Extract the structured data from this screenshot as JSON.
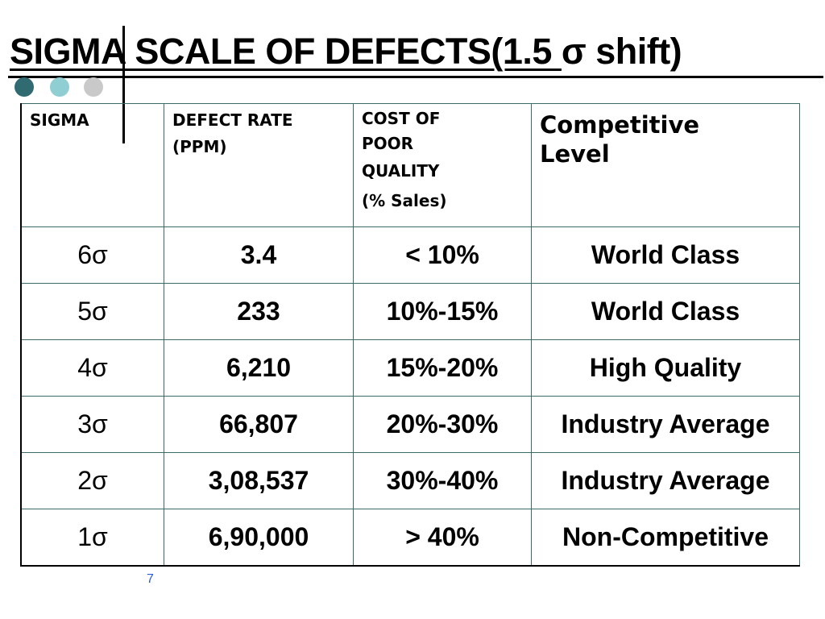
{
  "title": {
    "main": "SIGMA SCALE OF DEFECTS(1.5 ",
    "sigma_shift": "σ shift)"
  },
  "table": {
    "headers": {
      "sigma": "SIGMA",
      "defect_rate": "DEFECT RATE",
      "defect_rate_unit": "(PPM)",
      "cost_line1": "COST OF",
      "cost_line2": "POOR",
      "cost_line3": "QUALITY",
      "cost_unit": "(% Sales)",
      "competitive_line1": "Competitive",
      "competitive_line2": "Level"
    },
    "rows": [
      {
        "sigma": "6σ",
        "defect_rate": "3.4",
        "cost": "< 10%",
        "level": "World Class"
      },
      {
        "sigma": "5σ",
        "defect_rate": "233",
        "cost": "10%-15%",
        "level": "World Class"
      },
      {
        "sigma": "4σ",
        "defect_rate": "6,210",
        "cost": "15%-20%",
        "level": "High Quality"
      },
      {
        "sigma": "3σ",
        "defect_rate": "66,807",
        "cost": "20%-30%",
        "level": "Industry Average"
      },
      {
        "sigma": "2σ",
        "defect_rate": "3,08,537",
        "cost": "30%-40%",
        "level": "Industry Average"
      },
      {
        "sigma": "1σ",
        "defect_rate": "6,90,000",
        "cost": "> 40%",
        "level": "Non-Competitive"
      }
    ]
  },
  "page_number": "7",
  "colors": {
    "dot1": "#2f6b70",
    "dot2": "#8fcfd4",
    "dot3": "#c9c9c9",
    "page_number": "#2a5bd8"
  }
}
